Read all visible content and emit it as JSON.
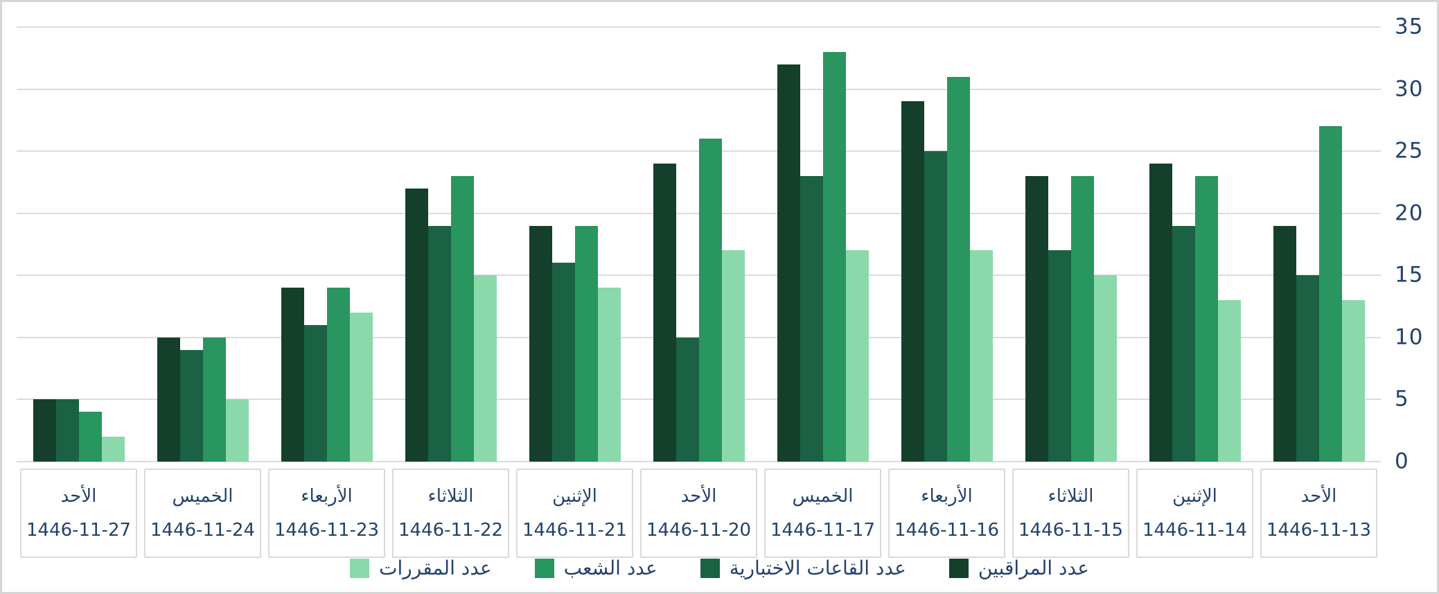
{
  "chart_data": {
    "type": "bar",
    "direction": "rtl",
    "title": "",
    "xlabel": "",
    "ylabel": "",
    "ylim": [
      0,
      35
    ],
    "yticks": [
      0,
      5,
      10,
      15,
      20,
      25,
      30,
      35
    ],
    "grid": true,
    "legend_position": "bottom",
    "categories": [
      {
        "day": "الأحد",
        "date": "1446-11-13"
      },
      {
        "day": "الإثنين",
        "date": "1446-11-14"
      },
      {
        "day": "الثلاثاء",
        "date": "1446-11-15"
      },
      {
        "day": "الأربعاء",
        "date": "1446-11-16"
      },
      {
        "day": "الخميس",
        "date": "1446-11-17"
      },
      {
        "day": "الأحد",
        "date": "1446-11-20"
      },
      {
        "day": "الإثنين",
        "date": "1446-11-21"
      },
      {
        "day": "الثلاثاء",
        "date": "1446-11-22"
      },
      {
        "day": "الأربعاء",
        "date": "1446-11-23"
      },
      {
        "day": "الخميس",
        "date": "1446-11-24"
      },
      {
        "day": "الأحد",
        "date": "1446-11-27"
      }
    ],
    "series": [
      {
        "name": "عدد المراقبين",
        "color": "#14402b",
        "values": [
          19,
          24,
          23,
          29,
          32,
          24,
          19,
          22,
          14,
          10,
          5
        ]
      },
      {
        "name": "عدد القاعات الاختبارية",
        "color": "#1a6243",
        "values": [
          15,
          19,
          17,
          25,
          23,
          10,
          16,
          19,
          11,
          9,
          5
        ]
      },
      {
        "name": "عدد الشعب",
        "color": "#29955f",
        "values": [
          27,
          23,
          23,
          31,
          33,
          26,
          19,
          23,
          14,
          10,
          4
        ]
      },
      {
        "name": "عدد المقررات",
        "color": "#8bd8ab",
        "values": [
          13,
          13,
          15,
          17,
          17,
          17,
          14,
          15,
          12,
          5,
          2
        ]
      }
    ]
  },
  "styles": {
    "axis_text_color": "#24426b",
    "gridline_color": "#dcdcdc",
    "frame_border_color": "#d5d5d5",
    "category_box_border": "#d9d9d9",
    "background": "#ffffff"
  }
}
